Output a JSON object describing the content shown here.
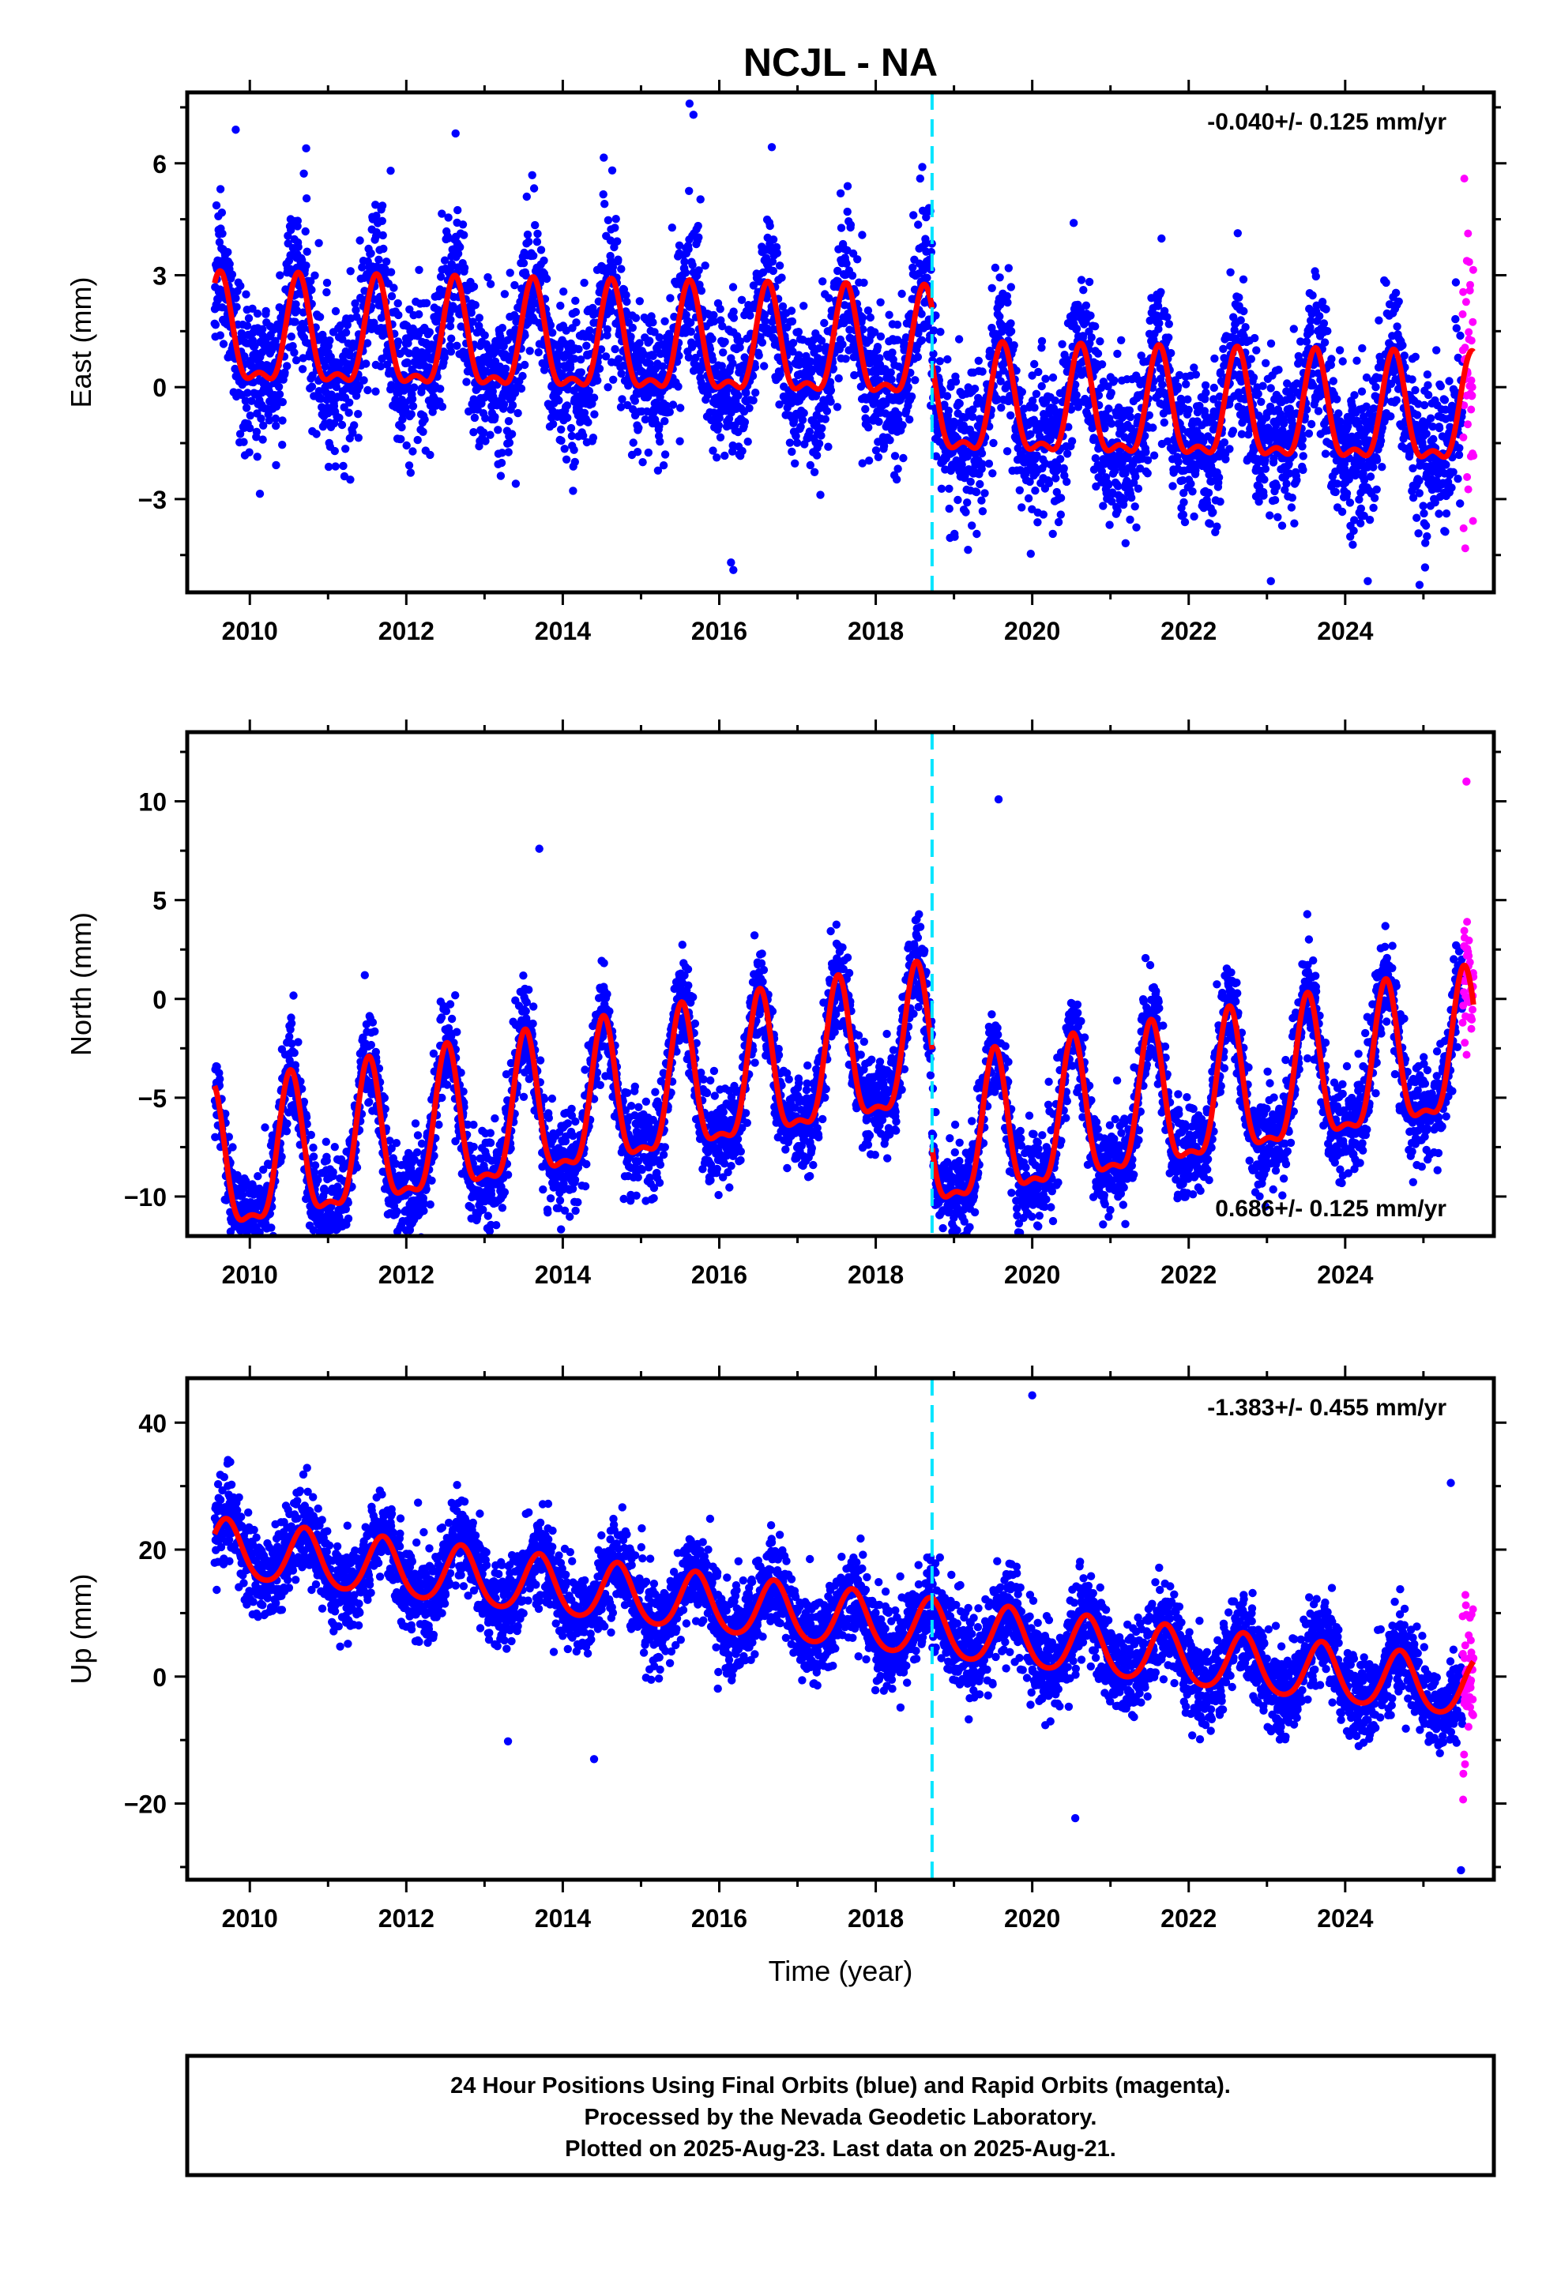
{
  "title": "NCJL - NA",
  "colors": {
    "final_orbits": "#0000ff",
    "rapid_orbits": "#ff00ff",
    "model_fit": "#ff0000",
    "equipment_change": "#00e5ff",
    "frame": "#000000"
  },
  "chart_data": [
    {
      "type": "scatter",
      "ylabel": "East (mm)",
      "xlabel": "",
      "xlim": [
        2009.2,
        2025.9
      ],
      "ylim": [
        -5.5,
        7.9
      ],
      "x_ticks": [
        2010,
        2012,
        2014,
        2016,
        2018,
        2020,
        2022,
        2024
      ],
      "y_ticks": [
        -3,
        0,
        3,
        6
      ],
      "y_tick_labels": [
        "−3",
        "0",
        "3",
        "6"
      ],
      "x_minor_step": 1,
      "y_minor_step": 1.5,
      "rate_label": "-0.040+/- 0.125 mm/yr",
      "rate_position": "top-right",
      "data_start": 2009.55,
      "data_end": 2025.64,
      "rapid_orbits_start": 2025.5,
      "equipment_change": 2018.72,
      "model": {
        "offset": 0.9,
        "trend_mm_per_yr": -0.04,
        "step_at": 2018.72,
        "step_mm": -1.5,
        "annual_amplitude": 1.35,
        "annual_peak": 0.62,
        "semiannual_amplitude": 0.55,
        "semiannual_peak": 0.12
      },
      "scatter_sigma": 1.0,
      "outliers": [
        {
          "x": 2009.82,
          "y": 6.9
        },
        {
          "x": 2012.63,
          "y": 6.8
        },
        {
          "x": 2015.62,
          "y": 7.6
        },
        {
          "x": 2015.67,
          "y": 7.3
        },
        {
          "x": 2016.15,
          "y": -4.7
        },
        {
          "x": 2016.18,
          "y": -4.9
        },
        {
          "x": 2020.53,
          "y": 4.4
        },
        {
          "x": 2023.05,
          "y": -5.2
        },
        {
          "x": 2024.95,
          "y": -5.3
        },
        {
          "x": 2018.68,
          "y": 4.8
        },
        {
          "x": 2011.8,
          "y": 5.8
        },
        {
          "x": 2010.72,
          "y": 6.4
        }
      ]
    },
    {
      "type": "scatter",
      "ylabel": "North (mm)",
      "xlabel": "",
      "xlim": [
        2009.2,
        2025.9
      ],
      "ylim": [
        -12.0,
        13.5
      ],
      "x_ticks": [
        2010,
        2012,
        2014,
        2016,
        2018,
        2020,
        2022,
        2024
      ],
      "y_ticks": [
        -10,
        -5,
        0,
        5,
        10
      ],
      "y_tick_labels": [
        "−10",
        "−5",
        "0",
        "5",
        "10"
      ],
      "x_minor_step": 1,
      "y_minor_step": 2.5,
      "rate_label": "0.686+/- 0.125 mm/yr",
      "rate_position": "bottom-right",
      "data_start": 2009.55,
      "data_end": 2025.64,
      "rapid_orbits_start": 2025.5,
      "equipment_change": 2018.72,
      "model": {
        "offset": -3.5,
        "trend_mm_per_yr": 0.686,
        "step_at": 2018.72,
        "step_mm": -5.0,
        "annual_amplitude": 3.5,
        "annual_peak": 0.52,
        "semiannual_amplitude": 1.2,
        "semiannual_peak": 0.02
      },
      "scatter_sigma": 1.2,
      "outliers": [
        {
          "x": 2009.92,
          "y": -11.5
        },
        {
          "x": 2010.05,
          "y": -11.0
        },
        {
          "x": 2013.7,
          "y": 7.6
        },
        {
          "x": 2019.57,
          "y": 10.1
        },
        {
          "x": 2012.1,
          "y": -9.0
        },
        {
          "x": 2025.55,
          "y": 11.0
        },
        {
          "x": 2010.95,
          "y": -9.6
        }
      ]
    },
    {
      "type": "scatter",
      "ylabel": "Up (mm)",
      "xlabel": "Time (year)",
      "xlim": [
        2009.2,
        2025.9
      ],
      "ylim": [
        -32,
        47
      ],
      "x_ticks": [
        2010,
        2012,
        2014,
        2016,
        2018,
        2020,
        2022,
        2024
      ],
      "y_ticks": [
        -20,
        0,
        20,
        40
      ],
      "y_tick_labels": [
        "−20",
        "0",
        "20",
        "40"
      ],
      "x_minor_step": 1,
      "y_minor_step": 10,
      "rate_label": "-1.383+/- 0.455 mm/yr",
      "rate_position": "top-right",
      "data_start": 2009.55,
      "data_end": 2025.64,
      "rapid_orbits_start": 2025.5,
      "equipment_change": 2018.72,
      "model": {
        "offset": 9.0,
        "trend_mm_per_yr": -1.383,
        "step_at": 2018.72,
        "step_mm": 0,
        "annual_amplitude": 4.5,
        "annual_peak": 0.7,
        "semiannual_amplitude": 0.6,
        "semiannual_peak": 0.2
      },
      "scatter_sigma": 3.4,
      "outliers": [
        {
          "x": 2009.75,
          "y": 33.8
        },
        {
          "x": 2012.15,
          "y": 27.4
        },
        {
          "x": 2020.0,
          "y": 44.3
        },
        {
          "x": 2025.35,
          "y": 30.5
        },
        {
          "x": 2025.48,
          "y": -30.5
        },
        {
          "x": 2018.7,
          "y": 18.8
        },
        {
          "x": 2014.4,
          "y": -13.0
        },
        {
          "x": 2020.55,
          "y": -22.3
        },
        {
          "x": 2013.3,
          "y": -10.2
        }
      ]
    }
  ],
  "caption": {
    "line1": "24 Hour Positions Using Final Orbits (blue) and Rapid Orbits (magenta).",
    "line2": "Processed by the Nevada Geodetic Laboratory.",
    "line3": "Plotted on 2025-Aug-23. Last data on 2025-Aug-21."
  }
}
